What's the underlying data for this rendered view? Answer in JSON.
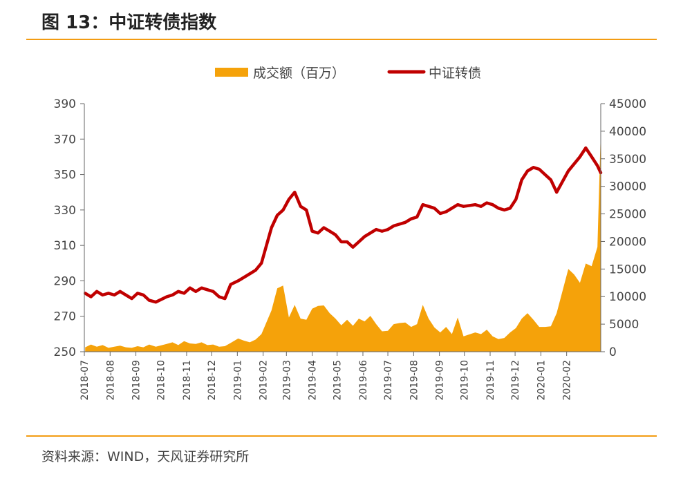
{
  "header": {
    "title": "图 13：中证转债指数"
  },
  "footer": {
    "source": "资料来源：WIND，天风证券研究所"
  },
  "colors": {
    "volume": "#F5A20A",
    "index": "#C00000",
    "accent_rule": "#F39C12"
  },
  "chart_data": {
    "type": "line+area",
    "title": "",
    "legend": {
      "placement": "top-center",
      "entries": [
        "成交额（百万）",
        "中证转债"
      ]
    },
    "grid": false,
    "x_ticks": [
      "2018-07",
      "2018-08",
      "2018-09",
      "2018-10",
      "2018-11",
      "2018-12",
      "2019-01",
      "2019-02",
      "2019-03",
      "2019-04",
      "2019-05",
      "2019-06",
      "2019-07",
      "2019-08",
      "2019-09",
      "2019-10",
      "2019-11",
      "2019-12",
      "2020-01",
      "2020-02"
    ],
    "y_left": {
      "ticks": [
        250,
        270,
        290,
        310,
        330,
        350,
        370,
        390
      ],
      "range": [
        250,
        390
      ]
    },
    "y_right": {
      "ticks": [
        0,
        5000,
        10000,
        15000,
        20000,
        25000,
        30000,
        35000,
        40000,
        45000
      ],
      "range": [
        0,
        45000
      ]
    },
    "series": [
      {
        "name": "中证转债",
        "axis": "left",
        "type": "line",
        "points": [
          [
            "2018-07-02",
            283
          ],
          [
            "2018-07-09",
            281
          ],
          [
            "2018-07-16",
            284
          ],
          [
            "2018-07-23",
            282
          ],
          [
            "2018-07-30",
            283
          ],
          [
            "2018-08-06",
            282
          ],
          [
            "2018-08-13",
            284
          ],
          [
            "2018-08-20",
            282
          ],
          [
            "2018-08-27",
            280
          ],
          [
            "2018-09-03",
            283
          ],
          [
            "2018-09-10",
            282
          ],
          [
            "2018-09-17",
            279
          ],
          [
            "2018-09-25",
            278
          ],
          [
            "2018-10-08",
            281
          ],
          [
            "2018-10-15",
            282
          ],
          [
            "2018-10-22",
            284
          ],
          [
            "2018-10-29",
            283
          ],
          [
            "2018-11-05",
            286
          ],
          [
            "2018-11-12",
            284
          ],
          [
            "2018-11-19",
            286
          ],
          [
            "2018-11-26",
            285
          ],
          [
            "2018-12-03",
            284
          ],
          [
            "2018-12-10",
            281
          ],
          [
            "2018-12-17",
            280
          ],
          [
            "2018-12-24",
            288
          ],
          [
            "2019-01-02",
            290
          ],
          [
            "2019-01-09",
            292
          ],
          [
            "2019-01-16",
            294
          ],
          [
            "2019-01-23",
            296
          ],
          [
            "2019-01-30",
            300
          ],
          [
            "2019-02-11",
            320
          ],
          [
            "2019-02-18",
            327
          ],
          [
            "2019-02-25",
            330
          ],
          [
            "2019-03-04",
            336
          ],
          [
            "2019-03-11",
            340
          ],
          [
            "2019-03-18",
            332
          ],
          [
            "2019-03-25",
            330
          ],
          [
            "2019-04-01",
            318
          ],
          [
            "2019-04-08",
            317
          ],
          [
            "2019-04-15",
            320
          ],
          [
            "2019-04-22",
            318
          ],
          [
            "2019-04-29",
            316
          ],
          [
            "2019-05-06",
            312
          ],
          [
            "2019-05-13",
            312
          ],
          [
            "2019-05-20",
            309
          ],
          [
            "2019-05-27",
            312
          ],
          [
            "2019-06-03",
            315
          ],
          [
            "2019-06-10",
            317
          ],
          [
            "2019-06-17",
            319
          ],
          [
            "2019-06-24",
            318
          ],
          [
            "2019-07-01",
            319
          ],
          [
            "2019-07-08",
            321
          ],
          [
            "2019-07-15",
            322
          ],
          [
            "2019-07-22",
            323
          ],
          [
            "2019-07-29",
            325
          ],
          [
            "2019-08-05",
            326
          ],
          [
            "2019-08-12",
            333
          ],
          [
            "2019-08-19",
            332
          ],
          [
            "2019-08-26",
            331
          ],
          [
            "2019-09-02",
            328
          ],
          [
            "2019-09-09",
            329
          ],
          [
            "2019-09-16",
            331
          ],
          [
            "2019-09-23",
            333
          ],
          [
            "2019-09-30",
            332
          ],
          [
            "2019-10-14",
            333
          ],
          [
            "2019-10-21",
            332
          ],
          [
            "2019-10-28",
            334
          ],
          [
            "2019-11-04",
            333
          ],
          [
            "2019-11-11",
            331
          ],
          [
            "2019-11-18",
            330
          ],
          [
            "2019-11-25",
            331
          ],
          [
            "2019-12-02",
            336
          ],
          [
            "2019-12-09",
            347
          ],
          [
            "2019-12-16",
            352
          ],
          [
            "2019-12-23",
            354
          ],
          [
            "2019-12-30",
            353
          ],
          [
            "2020-01-06",
            350
          ],
          [
            "2020-01-13",
            347
          ],
          [
            "2020-01-20",
            340
          ],
          [
            "2020-02-03",
            352
          ],
          [
            "2020-02-10",
            356
          ],
          [
            "2020-02-17",
            360
          ],
          [
            "2020-02-24",
            365
          ],
          [
            "2020-03-02",
            360
          ],
          [
            "2020-03-09",
            355
          ],
          [
            "2020-03-13",
            351
          ]
        ]
      },
      {
        "name": "成交额（百万）",
        "axis": "right",
        "type": "area",
        "points": [
          [
            "2018-07-02",
            800
          ],
          [
            "2018-07-09",
            1300
          ],
          [
            "2018-07-16",
            900
          ],
          [
            "2018-07-23",
            1200
          ],
          [
            "2018-07-30",
            700
          ],
          [
            "2018-08-06",
            900
          ],
          [
            "2018-08-13",
            1100
          ],
          [
            "2018-08-20",
            800
          ],
          [
            "2018-08-27",
            700
          ],
          [
            "2018-09-03",
            1000
          ],
          [
            "2018-09-10",
            800
          ],
          [
            "2018-09-17",
            1300
          ],
          [
            "2018-09-25",
            900
          ],
          [
            "2018-10-08",
            1400
          ],
          [
            "2018-10-15",
            1700
          ],
          [
            "2018-10-22",
            1200
          ],
          [
            "2018-10-29",
            1900
          ],
          [
            "2018-11-05",
            1500
          ],
          [
            "2018-11-12",
            1400
          ],
          [
            "2018-11-19",
            1700
          ],
          [
            "2018-11-26",
            1200
          ],
          [
            "2018-12-03",
            1300
          ],
          [
            "2018-12-10",
            900
          ],
          [
            "2018-12-17",
            1000
          ],
          [
            "2018-12-24",
            1600
          ],
          [
            "2019-01-02",
            2400
          ],
          [
            "2019-01-09",
            2000
          ],
          [
            "2019-01-16",
            1700
          ],
          [
            "2019-01-23",
            2200
          ],
          [
            "2019-01-30",
            3200
          ],
          [
            "2019-02-11",
            7500
          ],
          [
            "2019-02-18",
            11500
          ],
          [
            "2019-02-25",
            12000
          ],
          [
            "2019-03-04",
            6200
          ],
          [
            "2019-03-11",
            8500
          ],
          [
            "2019-03-18",
            6000
          ],
          [
            "2019-03-25",
            5800
          ],
          [
            "2019-04-01",
            7800
          ],
          [
            "2019-04-08",
            8300
          ],
          [
            "2019-04-15",
            8400
          ],
          [
            "2019-04-22",
            7000
          ],
          [
            "2019-04-29",
            6000
          ],
          [
            "2019-05-06",
            4800
          ],
          [
            "2019-05-13",
            5800
          ],
          [
            "2019-05-20",
            4700
          ],
          [
            "2019-05-27",
            6000
          ],
          [
            "2019-06-03",
            5500
          ],
          [
            "2019-06-10",
            6500
          ],
          [
            "2019-06-17",
            5000
          ],
          [
            "2019-06-24",
            3700
          ],
          [
            "2019-07-01",
            3800
          ],
          [
            "2019-07-08",
            5000
          ],
          [
            "2019-07-15",
            5200
          ],
          [
            "2019-07-22",
            5300
          ],
          [
            "2019-07-29",
            4500
          ],
          [
            "2019-08-05",
            5000
          ],
          [
            "2019-08-12",
            8500
          ],
          [
            "2019-08-19",
            6000
          ],
          [
            "2019-08-26",
            4400
          ],
          [
            "2019-09-02",
            3500
          ],
          [
            "2019-09-09",
            4500
          ],
          [
            "2019-09-16",
            3200
          ],
          [
            "2019-09-23",
            6200
          ],
          [
            "2019-09-30",
            2800
          ],
          [
            "2019-10-14",
            3500
          ],
          [
            "2019-10-21",
            3200
          ],
          [
            "2019-10-28",
            4000
          ],
          [
            "2019-11-04",
            2800
          ],
          [
            "2019-11-11",
            2300
          ],
          [
            "2019-11-18",
            2500
          ],
          [
            "2019-11-25",
            3500
          ],
          [
            "2019-12-02",
            4300
          ],
          [
            "2019-12-09",
            6000
          ],
          [
            "2019-12-16",
            7000
          ],
          [
            "2019-12-23",
            5800
          ],
          [
            "2019-12-30",
            4500
          ],
          [
            "2020-01-06",
            4500
          ],
          [
            "2020-01-13",
            4600
          ],
          [
            "2020-01-20",
            7000
          ],
          [
            "2020-02-03",
            15000
          ],
          [
            "2020-02-10",
            14000
          ],
          [
            "2020-02-17",
            12500
          ],
          [
            "2020-02-24",
            16000
          ],
          [
            "2020-03-02",
            15500
          ],
          [
            "2020-03-09",
            19000
          ],
          [
            "2020-03-13",
            40000
          ]
        ]
      }
    ]
  }
}
